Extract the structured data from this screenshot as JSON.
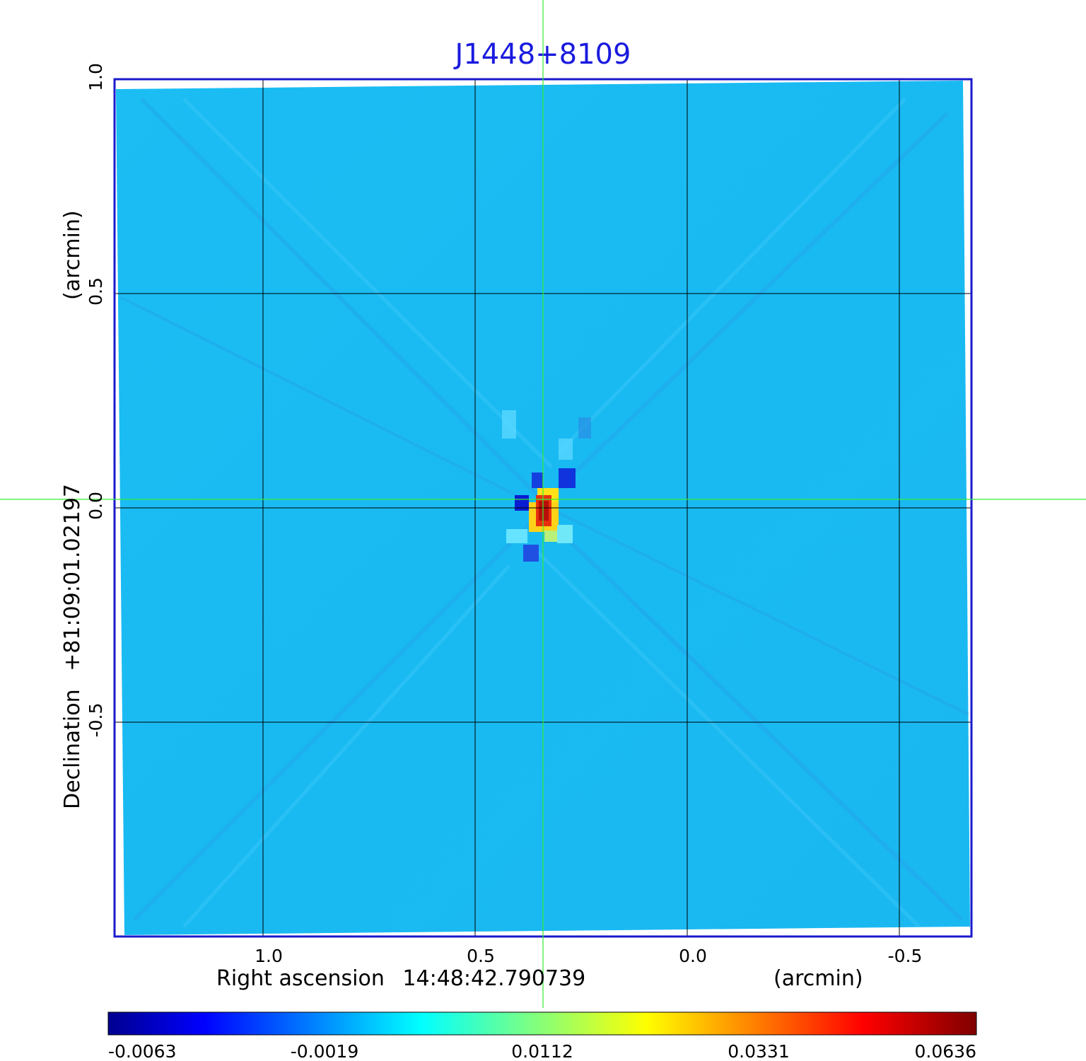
{
  "chart_data": {
    "type": "heatmap",
    "title": "J1448+8109",
    "colormap": "jet",
    "x_axis": {
      "label_prefix": "Right ascension",
      "reference": "14:48:42.790739",
      "unit_label": "(arcmin)",
      "direction": "decreasing-right",
      "range": [
        1.35,
        -0.67
      ],
      "ticks": [
        {
          "value": 1.0,
          "label": "1.0"
        },
        {
          "value": 0.5,
          "label": "0.5"
        },
        {
          "value": 0.0,
          "label": "0.0"
        },
        {
          "value": -0.5,
          "label": "-0.5"
        }
      ]
    },
    "y_axis": {
      "label_prefix": "Declination",
      "reference": "+81:09:01.02197",
      "unit_label": "(arcmin)",
      "range": [
        -1.0,
        1.0
      ],
      "ticks": [
        {
          "value": 1.0,
          "label": "1.0"
        },
        {
          "value": 0.5,
          "label": "0.5"
        },
        {
          "value": 0.0,
          "label": "0.0"
        },
        {
          "value": -0.5,
          "label": "-0.5"
        }
      ]
    },
    "grid": true,
    "crosshair": {
      "x": 0.34,
      "y": 0.02,
      "color": "#33ee33"
    },
    "source": {
      "x": 0.34,
      "y": 0.02,
      "peak": 0.0636
    },
    "colorbar": {
      "orientation": "horizontal",
      "position": "bottom",
      "min": -0.0063,
      "max": 0.0636,
      "ticks": [
        "-0.0063",
        "-0.0019",
        "0.0112",
        "0.0331",
        "0.0636"
      ]
    },
    "frame_color": "#1a1acc"
  }
}
